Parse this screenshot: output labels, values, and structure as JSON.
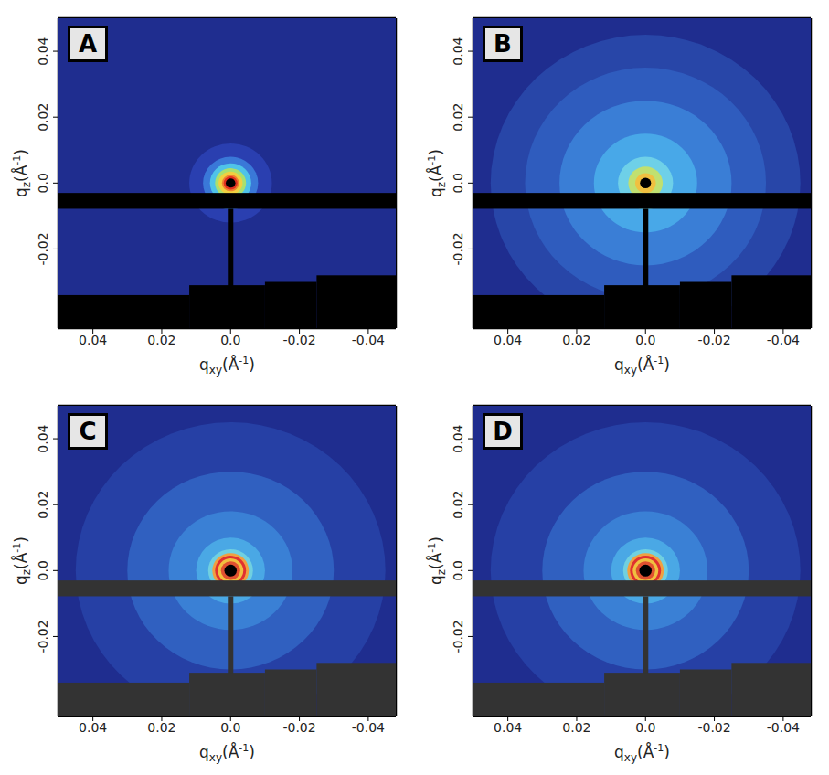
{
  "chart_data": [
    {
      "type": "heatmap",
      "title": "A",
      "x_label": {
        "text": "q",
        "subscript": "xy",
        "unit": "(Å",
        "superscript": "-1",
        "unit_end": ")"
      },
      "y_label": {
        "text": "q",
        "subscript": "z",
        "unit": "(Å",
        "superscript": "-1",
        "unit_end": ")"
      },
      "xlim": [
        0.05,
        -0.048
      ],
      "xticks": [
        0.04,
        0.02,
        {
          "value": 0,
          "label": "0.0"
        },
        -0.02,
        -0.04
      ],
      "ylim": [
        -0.044,
        0.05
      ],
      "yticks": [
        0.04,
        0.02,
        {
          "value": 0,
          "label": "0.0"
        },
        -0.02
      ],
      "background": "#1f2d8f",
      "center": [
        0,
        0
      ],
      "intensity_rings": [
        {
          "r": 0.012,
          "color": "#2a3fb0"
        },
        {
          "r": 0.008,
          "color": "#3a78d8"
        },
        {
          "r": 0.006,
          "color": "#4fc3e8"
        },
        {
          "r": 0.0045,
          "color": "#a8e070"
        },
        {
          "r": 0.0035,
          "color": "#f0d040"
        },
        {
          "r": 0.0025,
          "color": "#f08030"
        },
        {
          "r": 0.002,
          "color": "#e03020"
        },
        {
          "r": 0.0014,
          "color": "#000000"
        }
      ],
      "mask_color": "#000000",
      "masks": [
        {
          "x": [
            0.05,
            -0.048
          ],
          "y": [
            -0.0078,
            -0.003
          ]
        },
        {
          "x": [
            0.0008,
            -0.0008
          ],
          "y": [
            -0.034,
            -0.0078
          ]
        },
        {
          "x": [
            0.05,
            0.012
          ],
          "y": [
            -0.044,
            -0.034
          ]
        },
        {
          "x": [
            0.012,
            -0.01
          ],
          "y": [
            -0.044,
            -0.031
          ]
        },
        {
          "x": [
            -0.01,
            -0.025
          ],
          "y": [
            -0.044,
            -0.03
          ]
        },
        {
          "x": [
            -0.025,
            -0.048
          ],
          "y": [
            -0.044,
            -0.028
          ]
        }
      ]
    },
    {
      "type": "heatmap",
      "title": "B",
      "x_label": {
        "text": "q",
        "subscript": "xy",
        "unit": "(Å",
        "superscript": "-1",
        "unit_end": ")"
      },
      "y_label": {
        "text": "q",
        "subscript": "z",
        "unit": "(Å",
        "superscript": "-1",
        "unit_end": ")"
      },
      "xlim": [
        0.05,
        -0.048
      ],
      "xticks": [
        0.04,
        0.02,
        {
          "value": 0,
          "label": "0.0"
        },
        -0.02,
        -0.04
      ],
      "ylim": [
        -0.044,
        0.05
      ],
      "yticks": [
        0.04,
        0.02,
        {
          "value": 0,
          "label": "0.0"
        },
        -0.02
      ],
      "background": "#1f2d8f",
      "center": [
        0,
        0
      ],
      "intensity_rings": [
        {
          "r": 0.045,
          "color": "#2846a8"
        },
        {
          "r": 0.035,
          "color": "#2f5cbe"
        },
        {
          "r": 0.025,
          "color": "#3a7ed6"
        },
        {
          "r": 0.015,
          "color": "#48a8e8"
        },
        {
          "r": 0.008,
          "color": "#6ed0e8"
        },
        {
          "r": 0.005,
          "color": "#c0e070"
        },
        {
          "r": 0.003,
          "color": "#f0c040"
        },
        {
          "r": 0.0016,
          "color": "#000000"
        }
      ],
      "mask_color": "#000000",
      "masks": [
        {
          "x": [
            0.05,
            -0.048
          ],
          "y": [
            -0.0078,
            -0.003
          ]
        },
        {
          "x": [
            0.0008,
            -0.0008
          ],
          "y": [
            -0.034,
            -0.0078
          ]
        },
        {
          "x": [
            0.05,
            0.012
          ],
          "y": [
            -0.044,
            -0.034
          ]
        },
        {
          "x": [
            0.012,
            -0.01
          ],
          "y": [
            -0.044,
            -0.031
          ]
        },
        {
          "x": [
            -0.01,
            -0.025
          ],
          "y": [
            -0.044,
            -0.03
          ]
        },
        {
          "x": [
            -0.025,
            -0.048
          ],
          "y": [
            -0.044,
            -0.028
          ]
        }
      ]
    },
    {
      "type": "heatmap",
      "title": "C",
      "x_label": {
        "text": "q",
        "subscript": "xy",
        "unit": "(Å",
        "superscript": "-1",
        "unit_end": ")"
      },
      "y_label": {
        "text": "q",
        "subscript": "z",
        "unit": "(Å",
        "superscript": "-1",
        "unit_end": ")"
      },
      "xlim": [
        0.05,
        -0.048
      ],
      "xticks": [
        0.04,
        0.02,
        {
          "value": 0,
          "label": "0.0"
        },
        -0.02,
        -0.04
      ],
      "ylim": [
        -0.044,
        0.05
      ],
      "yticks": [
        0.04,
        0.02,
        {
          "value": 0,
          "label": "0.0"
        },
        -0.02
      ],
      "background": "#1f2d8f",
      "center": [
        0,
        0
      ],
      "intensity_rings": [
        {
          "r": 0.045,
          "color": "#2640a5"
        },
        {
          "r": 0.03,
          "color": "#3060c0"
        },
        {
          "r": 0.018,
          "color": "#3a80d5"
        },
        {
          "r": 0.01,
          "color": "#4aa8e5"
        },
        {
          "r": 0.0065,
          "color": "#70d0e0"
        },
        {
          "r": 0.0053,
          "color": "#f0a040"
        },
        {
          "r": 0.0045,
          "color": "#e03030"
        },
        {
          "r": 0.0037,
          "color": "#f0c040"
        },
        {
          "r": 0.0028,
          "color": "#e05030"
        },
        {
          "r": 0.0018,
          "color": "#000000"
        }
      ],
      "mask_color": "#333333",
      "masks": [
        {
          "x": [
            0.05,
            -0.048
          ],
          "y": [
            -0.0078,
            -0.003
          ]
        },
        {
          "x": [
            0.0008,
            -0.0008
          ],
          "y": [
            -0.034,
            -0.0078
          ]
        },
        {
          "x": [
            0.05,
            0.012
          ],
          "y": [
            -0.044,
            -0.034
          ]
        },
        {
          "x": [
            0.012,
            -0.01
          ],
          "y": [
            -0.044,
            -0.031
          ]
        },
        {
          "x": [
            -0.01,
            -0.025
          ],
          "y": [
            -0.044,
            -0.03
          ]
        },
        {
          "x": [
            -0.025,
            -0.048
          ],
          "y": [
            -0.044,
            -0.028
          ]
        }
      ]
    },
    {
      "type": "heatmap",
      "title": "D",
      "x_label": {
        "text": "q",
        "subscript": "xy",
        "unit": "(Å",
        "superscript": "-1",
        "unit_end": ")"
      },
      "y_label": {
        "text": "q",
        "subscript": "z",
        "unit": "(Å",
        "superscript": "-1",
        "unit_end": ")"
      },
      "xlim": [
        0.05,
        -0.048
      ],
      "xticks": [
        0.04,
        0.02,
        {
          "value": 0,
          "label": "0.0"
        },
        -0.02,
        -0.04
      ],
      "ylim": [
        -0.044,
        0.05
      ],
      "yticks": [
        0.04,
        0.02,
        {
          "value": 0,
          "label": "0.0"
        },
        -0.02
      ],
      "background": "#1f2d8f",
      "center": [
        0,
        0
      ],
      "intensity_rings": [
        {
          "r": 0.045,
          "color": "#2640a5"
        },
        {
          "r": 0.03,
          "color": "#3060c0"
        },
        {
          "r": 0.018,
          "color": "#3a80d5"
        },
        {
          "r": 0.01,
          "color": "#4aa8e5"
        },
        {
          "r": 0.0065,
          "color": "#70d0e0"
        },
        {
          "r": 0.0053,
          "color": "#f0a040"
        },
        {
          "r": 0.0045,
          "color": "#e03030"
        },
        {
          "r": 0.0037,
          "color": "#f0c040"
        },
        {
          "r": 0.0028,
          "color": "#e05030"
        },
        {
          "r": 0.0018,
          "color": "#000000"
        }
      ],
      "mask_color": "#333333",
      "masks": [
        {
          "x": [
            0.05,
            -0.048
          ],
          "y": [
            -0.0078,
            -0.003
          ]
        },
        {
          "x": [
            0.0008,
            -0.0008
          ],
          "y": [
            -0.034,
            -0.0078
          ]
        },
        {
          "x": [
            0.05,
            0.012
          ],
          "y": [
            -0.044,
            -0.034
          ]
        },
        {
          "x": [
            0.012,
            -0.01
          ],
          "y": [
            -0.044,
            -0.031
          ]
        },
        {
          "x": [
            -0.01,
            -0.025
          ],
          "y": [
            -0.044,
            -0.03
          ]
        },
        {
          "x": [
            -0.025,
            -0.048
          ],
          "y": [
            -0.044,
            -0.028
          ]
        }
      ]
    }
  ]
}
